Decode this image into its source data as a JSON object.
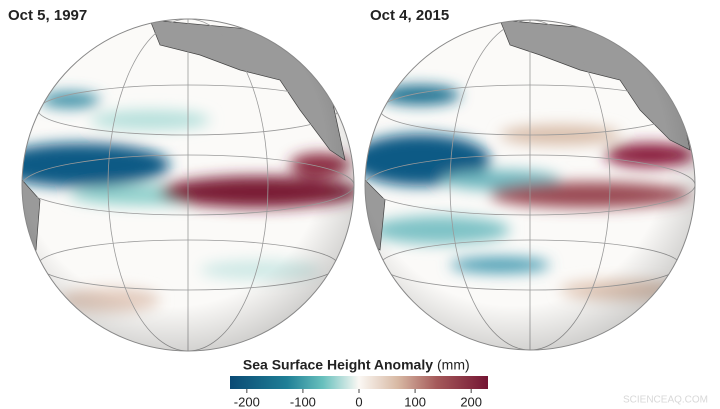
{
  "panels": [
    {
      "date": "Oct 5, 1997"
    },
    {
      "date": "Oct 4, 2015"
    }
  ],
  "colorbar": {
    "title": "Sea Surface Height Anomaly",
    "unit": "(mm)",
    "lim": [
      -230,
      230
    ],
    "ticks": [
      -200,
      -100,
      0,
      100,
      200
    ]
  },
  "watermark": "SCIENCEAQ.COM"
}
